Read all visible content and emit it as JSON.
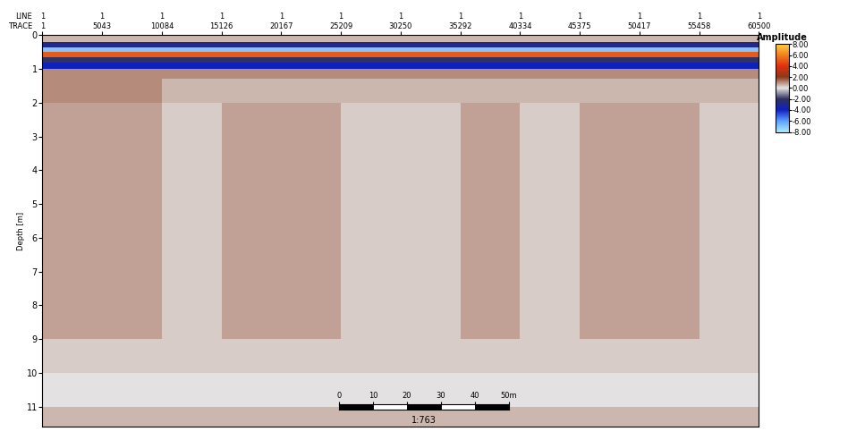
{
  "chart_data": {
    "type": "heatmap",
    "ylabel": "Depth [m]",
    "top_row_labels": [
      "LINE",
      "TRACE"
    ],
    "xlim": [
      1,
      60500
    ],
    "xticks": [
      {
        "value": 1,
        "label": "1\n1"
      },
      {
        "value": 5043,
        "label": "1\n5043"
      },
      {
        "value": 10084,
        "label": "1\n10084"
      },
      {
        "value": 15126,
        "label": "1\n15126"
      },
      {
        "value": 20167,
        "label": "1\n20167"
      },
      {
        "value": 25209,
        "label": "1\n25209"
      },
      {
        "value": 30250,
        "label": "1\n30250"
      },
      {
        "value": 35292,
        "label": "1\n35292"
      },
      {
        "value": 40334,
        "label": "1\n40334"
      },
      {
        "value": 45375,
        "label": "1\n45375"
      },
      {
        "value": 50417,
        "label": "1\n50417"
      },
      {
        "value": 55458,
        "label": "1\n55458"
      },
      {
        "value": 60500,
        "label": "1\n60500"
      }
    ],
    "ylim": [
      11.6,
      0
    ],
    "yticks": [
      0,
      1,
      2,
      3,
      4,
      5,
      6,
      7,
      8,
      9,
      10,
      11
    ],
    "trace_edges": [
      1,
      5043,
      10084,
      15126,
      20167,
      25209,
      30250,
      35292,
      40334,
      45375,
      50417,
      55458,
      60500
    ],
    "depth_edges": [
      0,
      0.2,
      0.35,
      0.5,
      0.65,
      0.8,
      1.0,
      1.3,
      2,
      3,
      4,
      5,
      6,
      7,
      8,
      9,
      10,
      11,
      11.6
    ],
    "cells": [
      [
        0.5,
        0.5,
        0.5,
        0.5,
        0.5,
        0.5,
        0.5,
        0.5,
        0.5,
        0.5,
        0.5,
        0.5
      ],
      [
        -3,
        -3,
        -3,
        -3,
        -3,
        -3,
        -3,
        -3,
        -3,
        -3,
        -3,
        -3
      ],
      [
        -7,
        -7,
        -7,
        -7,
        -7,
        -7,
        -7,
        -7,
        -7,
        -7,
        -7,
        -7
      ],
      [
        5,
        5,
        5,
        5,
        5,
        5,
        5,
        5,
        5,
        5,
        5,
        5
      ],
      [
        -2,
        -2,
        -2,
        -2,
        -2,
        -2,
        -2,
        -2,
        -2,
        -2,
        -2,
        -2
      ],
      [
        -4,
        -4,
        -4,
        -4,
        -4,
        -4,
        -4,
        -4,
        -4,
        -4,
        -4,
        -4
      ],
      [
        1,
        1,
        1,
        1,
        1,
        1,
        1,
        1,
        1,
        1,
        1,
        1
      ],
      [
        1,
        1,
        0.5,
        0.5,
        0.5,
        0.5,
        0.5,
        0.5,
        0.5,
        0.5,
        0.5,
        0.5
      ],
      [
        0.8,
        0.8,
        0.3,
        0.8,
        0.8,
        0.3,
        0.3,
        0.8,
        0.3,
        0.8,
        0.8,
        0.3
      ],
      [
        0.8,
        0.8,
        0.3,
        0.8,
        0.8,
        0.3,
        0.3,
        0.8,
        0.3,
        0.8,
        0.8,
        0.3
      ],
      [
        0.8,
        0.8,
        0.3,
        0.8,
        0.8,
        0.3,
        0.3,
        0.8,
        0.3,
        0.8,
        0.8,
        0.3
      ],
      [
        0.8,
        0.8,
        0.3,
        0.8,
        0.8,
        0.3,
        0.3,
        0.8,
        0.3,
        0.8,
        0.8,
        0.3
      ],
      [
        0.8,
        0.8,
        0.3,
        0.8,
        0.8,
        0.3,
        0.3,
        0.8,
        0.3,
        0.8,
        0.8,
        0.3
      ],
      [
        0.8,
        0.8,
        0.3,
        0.8,
        0.8,
        0.3,
        0.3,
        0.8,
        0.3,
        0.8,
        0.8,
        0.3
      ],
      [
        0.8,
        0.8,
        0.3,
        0.8,
        0.8,
        0.3,
        0.3,
        0.8,
        0.3,
        0.8,
        0.8,
        0.3
      ],
      [
        0.3,
        0.3,
        0.3,
        0.3,
        0.3,
        0.3,
        0.3,
        0.3,
        0.3,
        0.3,
        0.3,
        0.3
      ],
      [
        0,
        0,
        0,
        0,
        0,
        0,
        0,
        0,
        0,
        0,
        0,
        0
      ],
      [
        0.5,
        0.5,
        0.5,
        0.5,
        0.5,
        0.5,
        0.5,
        0.5,
        0.5,
        0.5,
        0.5,
        0.5
      ]
    ],
    "colorbar": {
      "title": "Amplitude",
      "range": [
        -8,
        8
      ],
      "ticks": [
        {
          "value": 8,
          "label": "8.00"
        },
        {
          "value": 6,
          "label": "6.00"
        },
        {
          "value": 4,
          "label": "4.00"
        },
        {
          "value": 2,
          "label": "2.00"
        },
        {
          "value": 0,
          "label": "0.00"
        },
        {
          "value": -2,
          "label": "-2.00"
        },
        {
          "value": -4,
          "label": "-4.00"
        },
        {
          "value": -6,
          "label": "-6.00"
        },
        {
          "value": -8,
          "label": "-8.00"
        }
      ]
    },
    "scale_bar": {
      "ticks": [
        0,
        10,
        20,
        30,
        40,
        {
          "value": 50,
          "label": "50m"
        }
      ],
      "ratio": "1:763"
    }
  }
}
